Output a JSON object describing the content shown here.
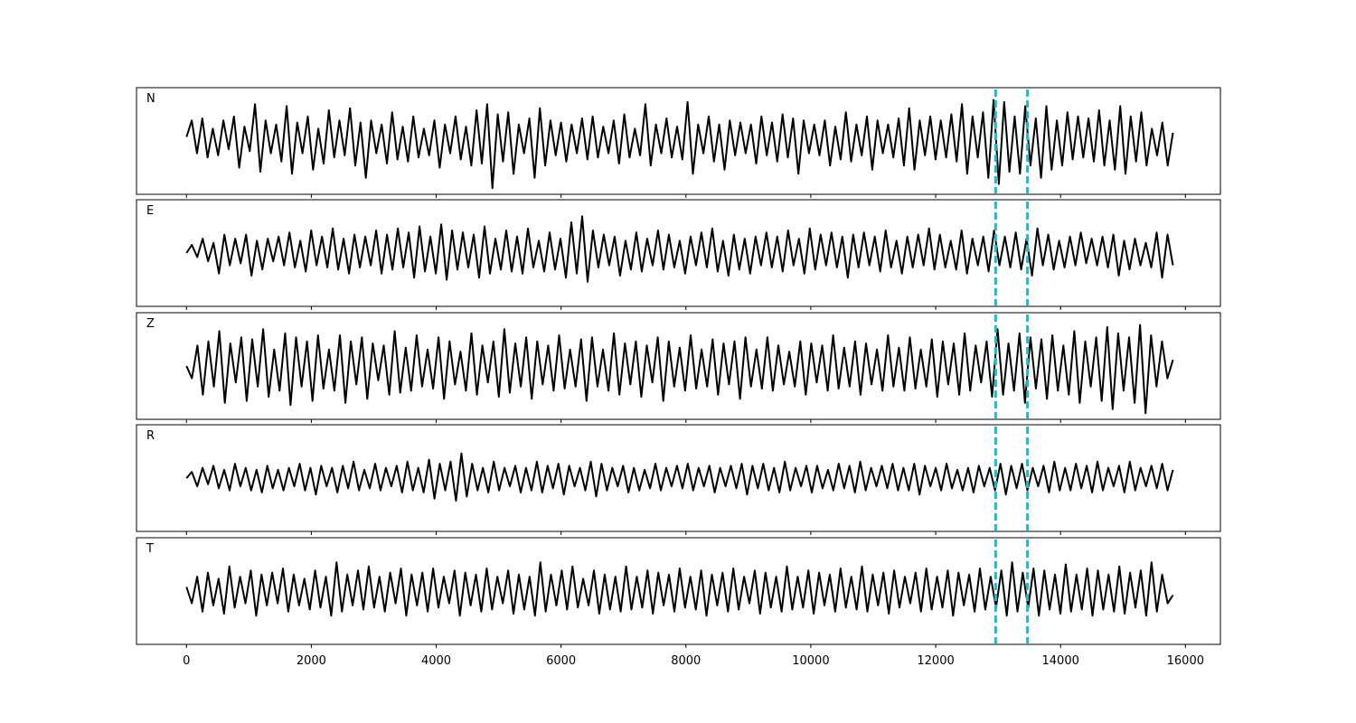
{
  "chart_data": {
    "type": "line",
    "title": "",
    "xlabel": "",
    "ylabel": "",
    "xlim": [
      -800,
      16560
    ],
    "x_ticks": [
      0,
      2000,
      4000,
      6000,
      8000,
      10000,
      12000,
      14000,
      16000
    ],
    "x_tick_labels": [
      "0",
      "2000",
      "4000",
      "6000",
      "8000",
      "10000",
      "12000",
      "14000",
      "16000"
    ],
    "x_range": [
      0,
      15800
    ],
    "grid": false,
    "line_color": "#000000",
    "marker_color": "#17becf",
    "markers": [
      12960,
      13470
    ],
    "panels": [
      {
        "label": "N",
        "ylim": [
          -1.3,
          1.3
        ],
        "values": [
          0.1,
          0.5,
          -0.3,
          0.55,
          -0.4,
          0.3,
          -0.35,
          0.5,
          -0.2,
          0.6,
          -0.65,
          0.35,
          -0.25,
          0.9,
          -0.75,
          0.5,
          -0.3,
          0.4,
          -0.5,
          0.85,
          -0.8,
          0.45,
          -0.3,
          0.6,
          -0.7,
          0.3,
          -0.55,
          0.75,
          -0.4,
          0.5,
          -0.35,
          0.8,
          -0.6,
          0.45,
          -0.9,
          0.5,
          -0.3,
          0.4,
          -0.55,
          0.7,
          -0.45,
          0.35,
          -0.5,
          0.6,
          -0.4,
          0.3,
          -0.35,
          0.5,
          -0.65,
          0.4,
          -0.3,
          0.6,
          -0.45,
          0.35,
          -0.6,
          0.75,
          -0.55,
          0.9,
          -1.15,
          0.65,
          -0.5,
          0.7,
          -0.8,
          0.4,
          -0.3,
          0.55,
          -0.9,
          0.8,
          -0.6,
          0.5,
          -0.35,
          0.45,
          -0.5,
          0.4,
          -0.3,
          0.55,
          -0.45,
          0.6,
          -0.4,
          0.35,
          -0.3,
          0.5,
          -0.55,
          0.65,
          -0.4,
          0.3,
          -0.35,
          0.9,
          -0.6,
          0.4,
          -0.3,
          0.55,
          -0.4,
          0.35,
          -0.45,
          0.95,
          -0.8,
          0.4,
          -0.3,
          0.6,
          -0.5,
          0.4,
          -0.7,
          0.5,
          -0.35,
          0.45,
          -0.3,
          0.4,
          -0.55,
          0.6,
          -0.35,
          0.45,
          -0.5,
          0.65,
          -0.4,
          0.55,
          -0.8,
          0.5,
          -0.3,
          0.4,
          -0.35,
          0.5,
          -0.6,
          0.35,
          -0.45,
          0.7,
          -0.5,
          0.4,
          -0.35,
          0.6,
          -0.7,
          0.5,
          -0.3,
          0.4,
          -0.4,
          0.55,
          -0.6,
          0.8,
          -0.7,
          0.5,
          -0.35,
          0.6,
          -0.45,
          0.5,
          -0.4,
          0.65,
          -0.5,
          0.9,
          -0.8,
          0.6,
          -0.4,
          0.7,
          -0.9,
          1.0,
          -1.05,
          0.95,
          -0.75,
          0.6,
          -0.8,
          0.85,
          -0.6,
          0.55,
          -0.9,
          0.85,
          -0.7,
          0.5,
          -0.6,
          0.7,
          -0.45,
          0.6,
          -0.4,
          0.55,
          -0.5,
          0.75,
          -0.6,
          0.5,
          -0.7,
          0.85,
          -0.8,
          0.6,
          -0.5,
          0.7,
          -0.6,
          0.3,
          -0.35,
          0.45,
          -0.6,
          0.2
        ]
      },
      {
        "label": "E",
        "ylim": [
          -1.3,
          1.3
        ],
        "values": [
          0.0,
          0.2,
          -0.1,
          0.35,
          -0.2,
          0.25,
          -0.5,
          0.45,
          -0.3,
          0.35,
          -0.25,
          0.45,
          -0.55,
          0.3,
          -0.4,
          0.35,
          -0.2,
          0.4,
          -0.3,
          0.5,
          -0.35,
          0.3,
          -0.45,
          0.55,
          -0.3,
          0.4,
          -0.35,
          0.6,
          -0.4,
          0.35,
          -0.5,
          0.45,
          -0.35,
          0.4,
          -0.3,
          0.55,
          -0.5,
          0.45,
          -0.4,
          0.6,
          -0.35,
          0.5,
          -0.6,
          0.65,
          -0.45,
          0.4,
          -0.5,
          0.7,
          -0.65,
          0.55,
          -0.4,
          0.5,
          -0.35,
          0.45,
          -0.6,
          0.65,
          -0.5,
          0.35,
          -0.4,
          0.55,
          -0.45,
          0.4,
          -0.5,
          0.6,
          -0.35,
          0.3,
          -0.45,
          0.5,
          -0.4,
          0.35,
          -0.6,
          0.75,
          -0.5,
          0.9,
          -0.7,
          0.55,
          -0.35,
          0.45,
          -0.3,
          0.4,
          -0.55,
          0.3,
          -0.4,
          0.5,
          -0.45,
          0.35,
          -0.3,
          0.55,
          -0.4,
          0.45,
          -0.35,
          0.3,
          -0.5,
          0.4,
          -0.3,
          0.5,
          -0.35,
          0.6,
          -0.45,
          0.3,
          -0.55,
          0.45,
          -0.4,
          0.35,
          -0.5,
          0.4,
          -0.3,
          0.5,
          -0.35,
          0.4,
          -0.45,
          0.55,
          -0.3,
          0.35,
          -0.5,
          0.6,
          -0.4,
          0.45,
          -0.3,
          0.5,
          -0.35,
          0.4,
          -0.6,
          0.45,
          -0.35,
          0.5,
          -0.3,
          0.4,
          -0.45,
          0.55,
          -0.35,
          0.3,
          -0.5,
          0.4,
          -0.35,
          0.45,
          -0.3,
          0.6,
          -0.4,
          0.45,
          -0.35,
          0.3,
          -0.4,
          0.55,
          -0.5,
          0.35,
          -0.3,
          0.4,
          -0.45,
          0.55,
          -0.3,
          0.4,
          -0.35,
          0.5,
          -0.4,
          0.35,
          -0.55,
          0.6,
          -0.3,
          0.45,
          -0.4,
          0.3,
          -0.35,
          0.4,
          -0.3,
          0.5,
          -0.25,
          0.35,
          -0.3,
          0.4,
          -0.35,
          0.45,
          -0.55,
          0.3,
          -0.4,
          0.35,
          -0.3,
          0.25,
          -0.35,
          0.5,
          -0.6,
          0.45,
          -0.3
        ]
      },
      {
        "label": "Z",
        "ylim": [
          -1.3,
          1.3
        ],
        "values": [
          0.0,
          -0.3,
          0.5,
          -0.7,
          0.6,
          -0.5,
          0.85,
          -0.9,
          0.55,
          -0.4,
          0.7,
          -0.85,
          0.65,
          -0.5,
          0.9,
          -0.75,
          0.4,
          -0.6,
          0.8,
          -0.95,
          0.7,
          -0.5,
          0.6,
          -0.85,
          0.75,
          -0.55,
          0.4,
          -0.6,
          0.75,
          -0.9,
          0.6,
          -0.45,
          0.7,
          -0.8,
          0.55,
          -0.35,
          0.5,
          -0.7,
          0.85,
          -0.65,
          0.45,
          -0.6,
          0.75,
          -0.5,
          0.4,
          -0.55,
          0.7,
          -0.8,
          0.6,
          -0.45,
          0.35,
          -0.6,
          0.8,
          -0.7,
          0.5,
          -0.4,
          0.6,
          -0.75,
          0.9,
          -0.65,
          0.55,
          -0.5,
          0.7,
          -0.8,
          0.6,
          -0.45,
          0.5,
          -0.6,
          0.75,
          -0.55,
          0.4,
          -0.5,
          0.65,
          -0.85,
          0.7,
          -0.5,
          0.4,
          -0.6,
          0.8,
          -0.7,
          0.55,
          -0.45,
          0.6,
          -0.75,
          0.5,
          -0.4,
          0.7,
          -0.85,
          0.6,
          -0.5,
          0.45,
          -0.6,
          0.75,
          -0.55,
          0.4,
          -0.5,
          0.65,
          -0.7,
          0.55,
          -0.45,
          0.6,
          -0.8,
          0.7,
          -0.5,
          0.4,
          -0.55,
          0.7,
          -0.6,
          0.5,
          -0.45,
          0.35,
          -0.5,
          0.6,
          -0.7,
          0.55,
          -0.4,
          0.5,
          -0.6,
          0.75,
          -0.55,
          0.45,
          -0.5,
          0.6,
          -0.7,
          0.55,
          -0.45,
          0.4,
          -0.6,
          0.75,
          -0.5,
          0.45,
          -0.6,
          0.7,
          -0.55,
          0.4,
          -0.5,
          0.65,
          -0.75,
          0.6,
          -0.45,
          0.55,
          -0.7,
          0.8,
          -0.6,
          0.5,
          -0.4,
          0.6,
          -0.75,
          0.9,
          -0.7,
          0.55,
          -0.6,
          0.8,
          -0.9,
          0.7,
          -0.55,
          0.65,
          -0.8,
          0.75,
          -0.6,
          0.5,
          -0.7,
          0.85,
          -0.9,
          0.6,
          -0.5,
          0.7,
          -0.85,
          0.95,
          -1.05,
          0.8,
          -0.6,
          0.7,
          -0.9,
          1.0,
          -1.15,
          0.75,
          -0.5,
          0.6,
          -0.3,
          0.15
        ]
      },
      {
        "label": "R",
        "ylim": [
          -1.3,
          1.3
        ],
        "values": [
          0.0,
          0.15,
          -0.2,
          0.25,
          -0.15,
          0.3,
          -0.25,
          0.2,
          -0.3,
          0.35,
          -0.2,
          0.25,
          -0.3,
          0.2,
          -0.35,
          0.3,
          -0.25,
          0.2,
          -0.3,
          0.25,
          -0.2,
          0.35,
          -0.3,
          0.25,
          -0.4,
          0.3,
          -0.2,
          0.25,
          -0.35,
          0.3,
          -0.25,
          0.4,
          -0.3,
          0.2,
          -0.25,
          0.35,
          -0.3,
          0.25,
          -0.2,
          0.3,
          -0.35,
          0.4,
          -0.3,
          0.25,
          -0.35,
          0.45,
          -0.5,
          0.35,
          -0.3,
          0.4,
          -0.55,
          0.6,
          -0.45,
          0.35,
          -0.3,
          0.25,
          -0.35,
          0.4,
          -0.3,
          0.25,
          -0.2,
          0.3,
          -0.35,
          0.25,
          -0.3,
          0.4,
          -0.35,
          0.3,
          -0.25,
          0.35,
          -0.4,
          0.3,
          -0.2,
          0.25,
          -0.3,
          0.4,
          -0.45,
          0.35,
          -0.3,
          0.25,
          -0.2,
          0.3,
          -0.35,
          0.25,
          -0.3,
          0.2,
          -0.25,
          0.35,
          -0.3,
          0.25,
          -0.2,
          0.3,
          -0.25,
          0.35,
          -0.3,
          0.25,
          -0.2,
          0.3,
          -0.35,
          0.25,
          -0.2,
          0.3,
          -0.25,
          0.35,
          -0.4,
          0.3,
          -0.25,
          0.35,
          -0.3,
          0.25,
          -0.35,
          0.4,
          -0.3,
          0.25,
          -0.2,
          0.3,
          -0.35,
          0.3,
          -0.25,
          0.2,
          -0.3,
          0.35,
          -0.25,
          0.3,
          -0.35,
          0.4,
          -0.3,
          0.25,
          -0.2,
          0.3,
          -0.25,
          0.35,
          -0.3,
          0.25,
          -0.3,
          0.35,
          -0.4,
          0.3,
          -0.2,
          0.25,
          -0.3,
          0.35,
          -0.25,
          0.2,
          -0.3,
          0.25,
          -0.35,
          0.3,
          -0.2,
          0.25,
          -0.3,
          0.35,
          -0.4,
          0.3,
          -0.25,
          0.35,
          -0.3,
          0.25,
          -0.2,
          0.3,
          -0.35,
          0.4,
          -0.3,
          0.25,
          -0.3,
          0.35,
          -0.25,
          0.3,
          -0.35,
          0.4,
          -0.3,
          0.25,
          -0.2,
          0.3,
          -0.35,
          0.4,
          -0.3,
          0.25,
          -0.2,
          0.3,
          -0.25,
          0.35,
          -0.3,
          0.2
        ]
      },
      {
        "label": "T",
        "ylim": [
          -1.3,
          1.3
        ],
        "values": [
          0.1,
          -0.3,
          0.35,
          -0.5,
          0.45,
          -0.35,
          0.3,
          -0.55,
          0.6,
          -0.4,
          0.35,
          -0.3,
          0.5,
          -0.6,
          0.4,
          -0.35,
          0.45,
          -0.3,
          0.55,
          -0.5,
          0.4,
          -0.35,
          0.3,
          -0.45,
          0.5,
          -0.4,
          0.35,
          -0.6,
          0.7,
          -0.5,
          0.4,
          -0.35,
          0.5,
          -0.45,
          0.6,
          -0.4,
          0.35,
          -0.5,
          0.45,
          -0.3,
          0.55,
          -0.6,
          0.4,
          -0.35,
          0.45,
          -0.5,
          0.55,
          -0.4,
          0.35,
          -0.3,
          0.5,
          -0.6,
          0.45,
          -0.35,
          0.4,
          -0.5,
          0.55,
          -0.45,
          0.35,
          -0.3,
          0.5,
          -0.55,
          0.4,
          -0.45,
          0.35,
          -0.6,
          0.7,
          -0.5,
          0.4,
          -0.35,
          0.5,
          -0.45,
          0.6,
          -0.4,
          0.3,
          -0.35,
          0.5,
          -0.55,
          0.4,
          -0.45,
          0.35,
          -0.5,
          0.6,
          -0.45,
          0.35,
          -0.4,
          0.5,
          -0.55,
          0.45,
          -0.35,
          0.4,
          -0.5,
          0.55,
          -0.4,
          0.35,
          -0.45,
          0.5,
          -0.6,
          0.4,
          -0.35,
          0.45,
          -0.5,
          0.55,
          -0.45,
          0.35,
          -0.3,
          0.5,
          -0.55,
          0.45,
          -0.4,
          0.35,
          -0.5,
          0.6,
          -0.45,
          0.35,
          -0.4,
          0.5,
          -0.55,
          0.45,
          -0.35,
          0.4,
          -0.5,
          0.55,
          -0.4,
          0.35,
          -0.45,
          0.6,
          -0.5,
          0.4,
          -0.35,
          0.45,
          -0.55,
          0.5,
          -0.4,
          0.35,
          -0.3,
          0.45,
          -0.5,
          0.55,
          -0.45,
          0.35,
          -0.4,
          0.5,
          -0.6,
          0.45,
          -0.35,
          0.4,
          -0.5,
          0.55,
          -0.45,
          0.35,
          -0.4,
          0.5,
          -0.6,
          0.7,
          -0.5,
          0.45,
          -0.4,
          0.55,
          -0.6,
          0.5,
          -0.45,
          0.4,
          -0.55,
          0.65,
          -0.5,
          0.4,
          -0.45,
          0.55,
          -0.6,
          0.5,
          -0.45,
          0.4,
          -0.5,
          0.6,
          -0.55,
          0.45,
          -0.4,
          0.5,
          -0.6,
          0.7,
          -0.5,
          0.4,
          -0.3,
          -0.1
        ]
      }
    ]
  }
}
